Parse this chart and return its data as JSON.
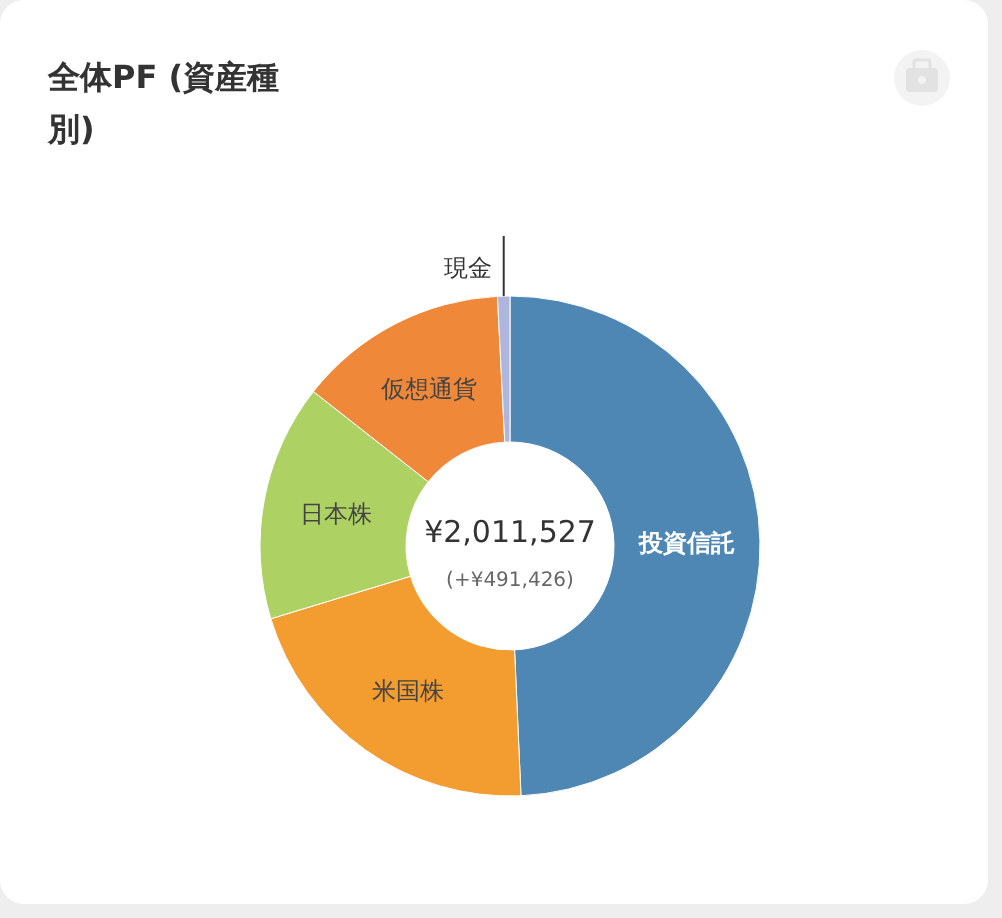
{
  "chart_data": {
    "type": "donut",
    "title": "全体PF (資産種別)",
    "categories": [
      "投資信託",
      "米国株",
      "日本株",
      "仮想通貨",
      "現金"
    ],
    "values": [
      49.3,
      21,
      15.3,
      13.6,
      0.8
    ],
    "colors": [
      "#4e87b4",
      "#f39c2f",
      "#aed163",
      "#ef8838",
      "#aeb6dd"
    ],
    "annotations": [
      "¥2,011,527",
      "(+¥491,426)"
    ],
    "legend": false
  }
}
